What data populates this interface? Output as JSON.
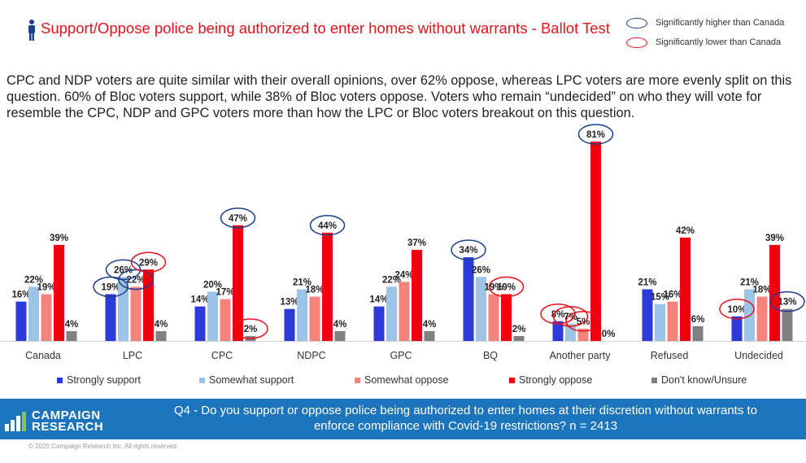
{
  "header": {
    "title": "Support/Oppose police being authorized to enter homes without warrants - Ballot Test"
  },
  "significance_legend": {
    "higher_label": "Significantly higher than Canada",
    "lower_label": "Significantly lower than Canada",
    "higher_color": "#1b3f8f",
    "lower_color": "#e8101a"
  },
  "summary_text": "CPC and NDP voters are quite similar with their overall opinions, over 62% oppose, whereas LPC voters are more evenly split on this question. 60% of Bloc voters support, while 38% of Bloc voters oppose. Voters who remain “undecided” on who they will vote for resemble the CPC, NDP and GPC voters more than how the LPC or Bloc voters breakout on this question.",
  "chart_data": {
    "type": "bar",
    "categories": [
      "Canada",
      "LPC",
      "CPC",
      "NDPC",
      "GPC",
      "BQ",
      "Another party",
      "Refused",
      "Undecided"
    ],
    "series": [
      {
        "name": "Strongly support",
        "color": "#2b3ad8",
        "values": [
          16,
          19,
          14,
          13,
          14,
          34,
          8,
          21,
          10
        ]
      },
      {
        "name": "Somewhat support",
        "color": "#9dc3e6",
        "values": [
          22,
          26,
          20,
          21,
          22,
          26,
          7,
          15,
          21
        ]
      },
      {
        "name": "Somewhat oppose",
        "color": "#f4837d",
        "values": [
          19,
          22,
          17,
          18,
          24,
          19,
          5,
          16,
          18
        ]
      },
      {
        "name": "Strongly oppose",
        "color": "#f0000f",
        "values": [
          39,
          29,
          47,
          44,
          37,
          19,
          81,
          42,
          39
        ]
      },
      {
        "name": "Don't know/Unsure",
        "color": "#808080",
        "values": [
          4,
          4,
          2,
          4,
          4,
          2,
          0,
          6,
          13
        ]
      }
    ],
    "value_suffix": "%",
    "ylim": [
      0,
      81
    ],
    "significance": [
      {
        "category": "LPC",
        "series": "Strongly support",
        "type": "higher"
      },
      {
        "category": "LPC",
        "series": "Somewhat support",
        "type": "higher"
      },
      {
        "category": "LPC",
        "series": "Somewhat oppose",
        "type": "higher"
      },
      {
        "category": "LPC",
        "series": "Strongly oppose",
        "type": "lower"
      },
      {
        "category": "CPC",
        "series": "Strongly oppose",
        "type": "higher"
      },
      {
        "category": "CPC",
        "series": "Don't know/Unsure",
        "type": "lower"
      },
      {
        "category": "NDPC",
        "series": "Strongly oppose",
        "type": "higher"
      },
      {
        "category": "BQ",
        "series": "Strongly support",
        "type": "higher"
      },
      {
        "category": "BQ",
        "series": "Strongly oppose",
        "type": "lower"
      },
      {
        "category": "Another party",
        "series": "Strongly oppose",
        "type": "higher"
      },
      {
        "category": "Another party",
        "series": "Strongly support",
        "type": "lower"
      },
      {
        "category": "Another party",
        "series": "Somewhat support",
        "type": "lower"
      },
      {
        "category": "Another party",
        "series": "Somewhat oppose",
        "type": "lower"
      },
      {
        "category": "Undecided",
        "series": "Strongly support",
        "type": "lower"
      },
      {
        "category": "Undecided",
        "series": "Don't know/Unsure",
        "type": "higher"
      }
    ]
  },
  "footer": {
    "logo_line1": "CAMPAIGN",
    "logo_line2": "RESEARCH",
    "question_line1": "Q4 - Do you support or oppose police being authorized to enter homes at their discretion without warrants to",
    "question_line2": "enforce compliance with Covid-19 restrictions? n = 2413",
    "copyright": "© 2020 Campaign Research Inc. All rights reserved."
  }
}
